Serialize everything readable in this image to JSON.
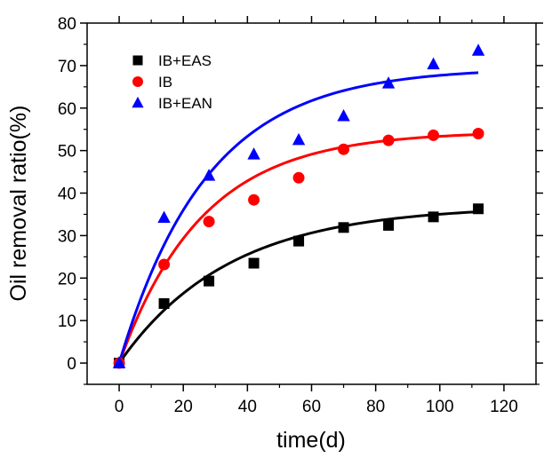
{
  "chart_data": {
    "type": "scatter",
    "title": "",
    "xlabel": "time(d)",
    "ylabel": "Oil removal ratio(%)",
    "xlim": [
      -10,
      130
    ],
    "ylim": [
      -5,
      80
    ],
    "xticks": [
      "0",
      "20",
      "40",
      "60",
      "80",
      "100",
      "120"
    ],
    "xtick_values": [
      0,
      20,
      40,
      60,
      80,
      100,
      120
    ],
    "yticks": [
      "0",
      "10",
      "20",
      "30",
      "40",
      "50",
      "60",
      "70",
      "80"
    ],
    "ytick_values": [
      0,
      10,
      20,
      30,
      40,
      50,
      60,
      70,
      80
    ],
    "grid": false,
    "legend_position": "top-left",
    "series": [
      {
        "name": "IB+EAS",
        "marker": "square",
        "color": "#000000",
        "x": [
          0,
          14,
          28,
          42,
          56,
          70,
          84,
          98,
          112
        ],
        "y": [
          0,
          14.0,
          19.3,
          23.5,
          28.7,
          31.9,
          32.4,
          34.4,
          36.3
        ],
        "fit": {
          "a": 37,
          "k": 0.0293
        }
      },
      {
        "name": "IB",
        "marker": "circle",
        "color": "#ff0000",
        "x": [
          0,
          14,
          28,
          42,
          56,
          70,
          84,
          98,
          112
        ],
        "y": [
          0,
          23.2,
          33.3,
          38.4,
          43.6,
          50.3,
          52.4,
          53.6,
          54.0
        ],
        "fit": {
          "a": 54.5,
          "k": 0.0386
        }
      },
      {
        "name": "IB+EAN",
        "marker": "triangle",
        "color": "#0000ff",
        "x": [
          0,
          14,
          28,
          42,
          56,
          70,
          84,
          98,
          112
        ],
        "y": [
          0,
          34.2,
          44.1,
          49.1,
          52.5,
          58.1,
          65.8,
          70.3,
          73.5
        ],
        "fit": {
          "a": 69.5,
          "k": 0.0365
        }
      }
    ]
  }
}
